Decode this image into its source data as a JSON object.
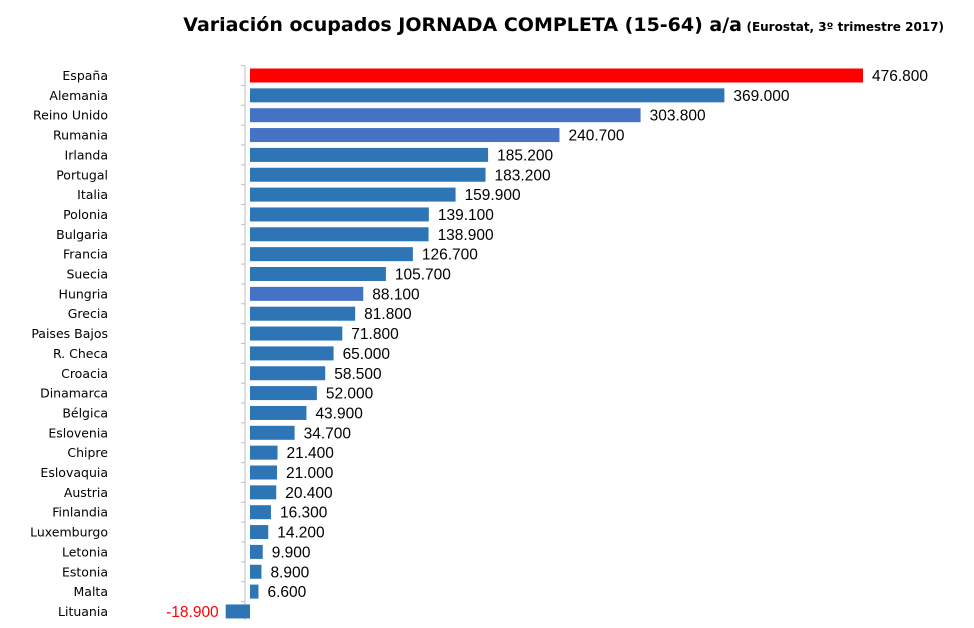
{
  "chart_data": {
    "type": "bar",
    "orientation": "horizontal",
    "title": "Variación ocupados JORNADA COMPLETA (15-64) a/a",
    "subtitle": "(Eurostat, 3º trimestre 2017)",
    "categories": [
      "España",
      "Alemania",
      "Reino Unido",
      "Rumania",
      "Irlanda",
      "Portugal",
      "Italia",
      "Polonia",
      "Bulgaria",
      "Francia",
      "Suecia",
      "Hungria",
      "Grecia",
      "Paises Bajos",
      "R. Checa",
      "Croacia",
      "Dinamarca",
      "Bélgica",
      "Eslovenia",
      "Chipre",
      "Eslovaquia",
      "Austria",
      "Finlandia",
      "Luxemburgo",
      "Letonia",
      "Estonia",
      "Malta",
      "Lituania"
    ],
    "values": [
      476800,
      369000,
      303800,
      240700,
      185200,
      183200,
      159900,
      139100,
      138900,
      126700,
      105700,
      88100,
      81800,
      71800,
      65000,
      58500,
      52000,
      43900,
      34700,
      21400,
      21000,
      20400,
      16300,
      14200,
      9900,
      8900,
      6600,
      -18900
    ],
    "value_labels": [
      "476.800",
      "369.000",
      "303.800",
      "240.700",
      "185.200",
      "183.200",
      "159.900",
      "139.100",
      "138.900",
      "126.700",
      "105.700",
      "88.100",
      "81.800",
      "71.800",
      "65.000",
      "58.500",
      "52.000",
      "43.900",
      "34.700",
      "21.400",
      "21.000",
      "20.400",
      "16.300",
      "14.200",
      "9.900",
      "8.900",
      "6.600",
      "-18.900"
    ],
    "bar_colors": [
      "#ff0000",
      "#2e75b6",
      "#4472c4",
      "#4472c4",
      "#2e75b6",
      "#2e75b6",
      "#2e75b6",
      "#2e75b6",
      "#2e75b6",
      "#2e75b6",
      "#2e75b6",
      "#4472c4",
      "#2e75b6",
      "#2e75b6",
      "#2e75b6",
      "#2e75b6",
      "#2e75b6",
      "#2e75b6",
      "#2e75b6",
      "#2e75b6",
      "#2e75b6",
      "#2e75b6",
      "#2e75b6",
      "#2e75b6",
      "#2e75b6",
      "#2e75b6",
      "#2e75b6",
      "#2e75b6"
    ],
    "negative_label_color": "#ff0000",
    "positive_label_color": "#000000",
    "xlim": [
      -24000,
      480000
    ],
    "grid": false,
    "legend": "none"
  }
}
